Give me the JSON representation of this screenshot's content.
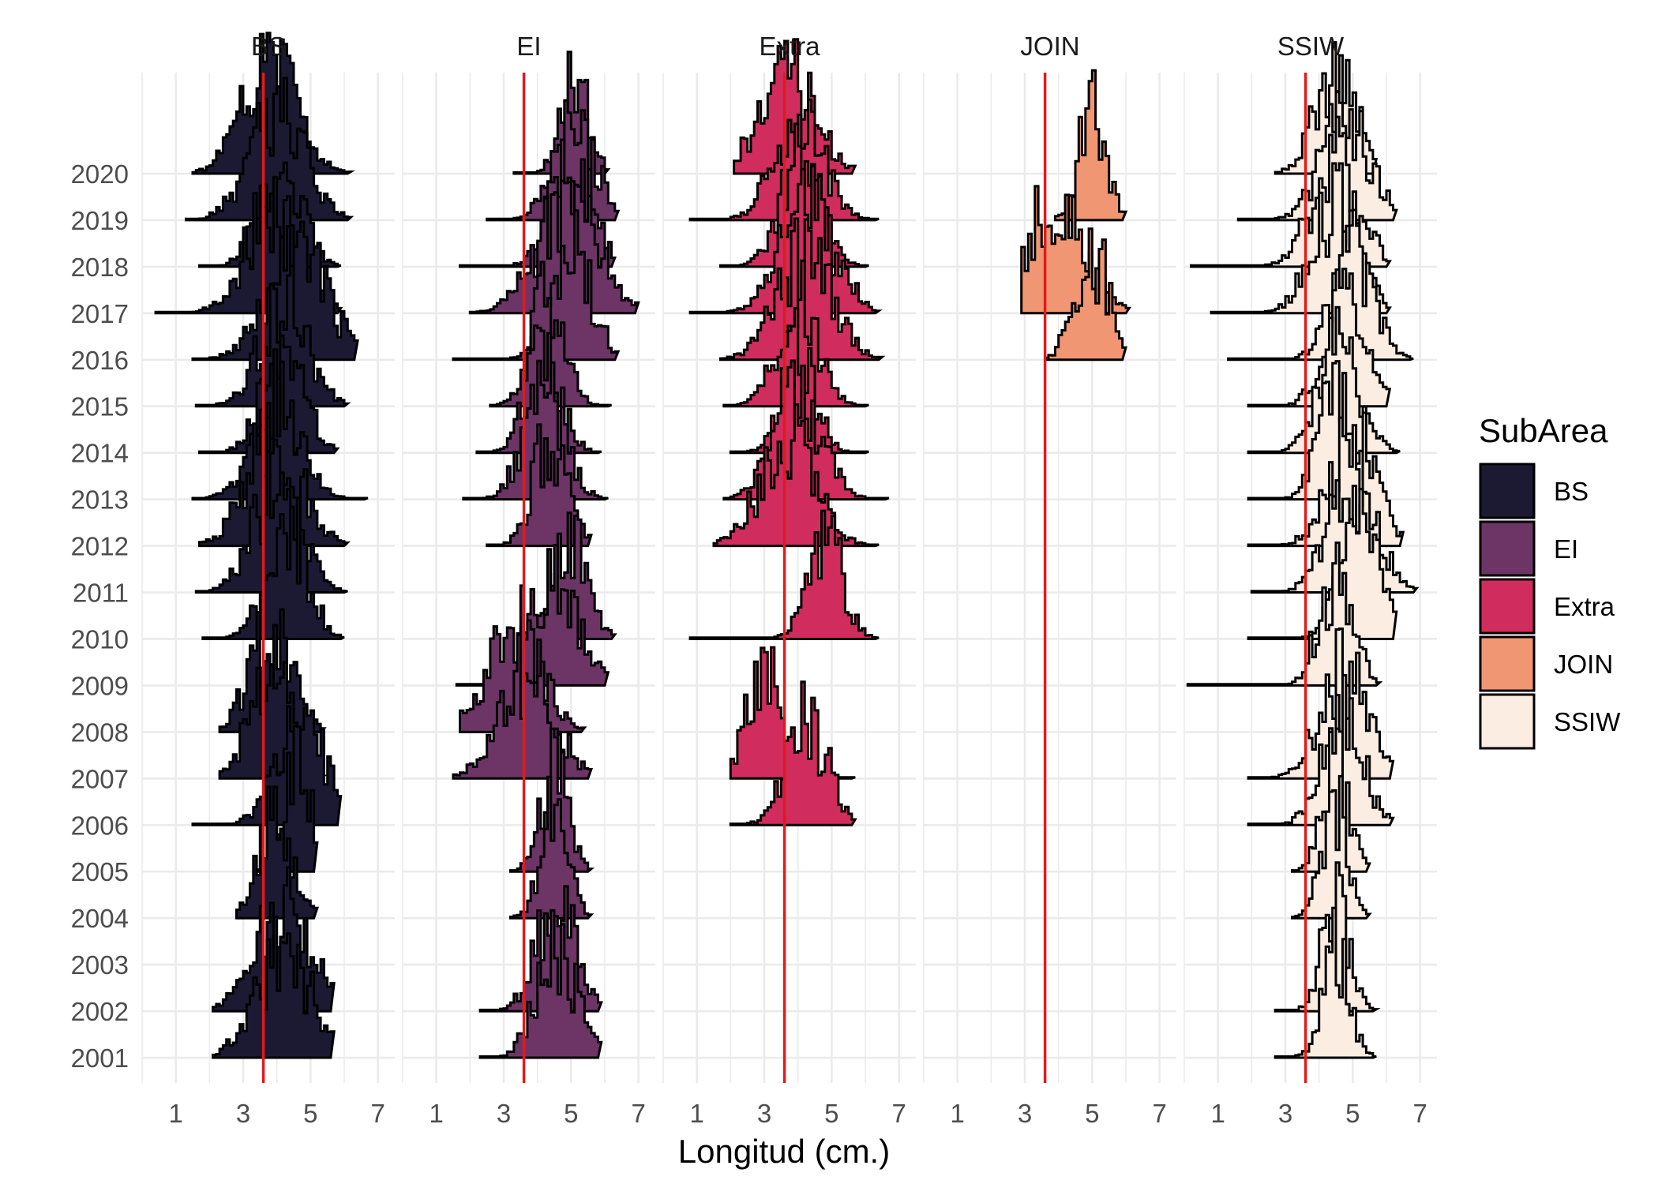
{
  "chart_data": {
    "type": "ridgeline",
    "title": "",
    "xlabel": "Longitud (cm.)",
    "ylabel": "",
    "panels": [
      "BS",
      "EI",
      "Extra",
      "JOIN",
      "SSIW"
    ],
    "years": [
      "2001",
      "2002",
      "2003",
      "2004",
      "2005",
      "2006",
      "2007",
      "2008",
      "2009",
      "2010",
      "2011",
      "2012",
      "2013",
      "2014",
      "2015",
      "2016",
      "2017",
      "2018",
      "2019",
      "2020"
    ],
    "x_ticks": [
      "1",
      "3",
      "5",
      "7"
    ],
    "xlim": [
      0,
      7.5
    ],
    "reference_line_x": 3.6,
    "reference_line_color": "#e31a1c",
    "legend": {
      "title": "SubArea",
      "position": "right",
      "entries": [
        {
          "label": "BS",
          "color": "#1c1a33"
        },
        {
          "label": "EI",
          "color": "#6d3466"
        },
        {
          "label": "Extra",
          "color": "#d02c5e"
        },
        {
          "label": "JOIN",
          "color": "#f19672"
        },
        {
          "label": "SSIW",
          "color": "#fbede2"
        }
      ]
    },
    "grid": true,
    "series": [
      {
        "panel": "BS",
        "year": "2001",
        "range": [
          2.1,
          5.6
        ],
        "mode": 4.2,
        "spread": 0.8
      },
      {
        "panel": "BS",
        "year": "2002",
        "range": [
          2.1,
          5.6
        ],
        "mode": 4.2,
        "spread": 0.8
      },
      {
        "panel": "BS",
        "year": "2004",
        "range": [
          2.8,
          5.1
        ],
        "mode": 4.0,
        "spread": 0.5
      },
      {
        "panel": "BS",
        "year": "2005",
        "range": [
          3.4,
          5.1
        ],
        "mode": 4.6,
        "spread": 0.4
      },
      {
        "panel": "BS",
        "year": "2006",
        "range": [
          1.5,
          5.8
        ],
        "mode": 4.7,
        "spread": 0.7
      },
      {
        "panel": "BS",
        "year": "2007",
        "range": [
          2.3,
          5.3
        ],
        "mode": 3.8,
        "spread": 0.6
      },
      {
        "panel": "BS",
        "year": "2008",
        "range": [
          2.3,
          5.3
        ],
        "mode": 3.8,
        "spread": 0.6
      },
      {
        "panel": "BS",
        "year": "2010",
        "range": [
          1.8,
          5.9
        ],
        "mode": 4.3,
        "spread": 0.6
      },
      {
        "panel": "BS",
        "year": "2011",
        "range": [
          1.6,
          6.0
        ],
        "mode": 4.0,
        "spread": 0.7
      },
      {
        "panel": "BS",
        "year": "2012",
        "range": [
          1.7,
          6.0
        ],
        "mode": 3.9,
        "spread": 0.8
      },
      {
        "panel": "BS",
        "year": "2013",
        "range": [
          1.5,
          6.6
        ],
        "mode": 4.0,
        "spread": 0.7
      },
      {
        "panel": "BS",
        "year": "2014",
        "range": [
          1.7,
          5.7
        ],
        "mode": 4.2,
        "spread": 0.6
      },
      {
        "panel": "BS",
        "year": "2015",
        "range": [
          1.6,
          6.0
        ],
        "mode": 4.2,
        "spread": 0.7
      },
      {
        "panel": "BS",
        "year": "2016",
        "range": [
          1.5,
          6.3
        ],
        "mode": 4.6,
        "spread": 0.9
      },
      {
        "panel": "BS",
        "year": "2017",
        "range": [
          0.4,
          5.8
        ],
        "mode": 3.9,
        "spread": 0.8
      },
      {
        "panel": "BS",
        "year": "2018",
        "range": [
          1.7,
          5.8
        ],
        "mode": 4.1,
        "spread": 0.6
      },
      {
        "panel": "BS",
        "year": "2019",
        "range": [
          1.3,
          6.1
        ],
        "mode": 4.0,
        "spread": 0.8
      },
      {
        "panel": "BS",
        "year": "2020",
        "range": [
          1.5,
          6.1
        ],
        "mode": 3.8,
        "spread": 0.8
      },
      {
        "panel": "EI",
        "year": "2001",
        "range": [
          2.3,
          5.8
        ],
        "mode": 4.6,
        "spread": 0.6
      },
      {
        "panel": "EI",
        "year": "2002",
        "range": [
          2.3,
          5.8
        ],
        "mode": 4.6,
        "spread": 0.6
      },
      {
        "panel": "EI",
        "year": "2004",
        "range": [
          3.2,
          5.5
        ],
        "mode": 4.5,
        "spread": 0.4
      },
      {
        "panel": "EI",
        "year": "2005",
        "range": [
          3.2,
          5.5
        ],
        "mode": 4.5,
        "spread": 0.4
      },
      {
        "panel": "EI",
        "year": "2007",
        "range": [
          1.5,
          5.5
        ],
        "mode": 3.7,
        "spread": 0.8
      },
      {
        "panel": "EI",
        "year": "2008",
        "range": [
          1.7,
          5.3
        ],
        "mode": 3.3,
        "spread": 0.8
      },
      {
        "panel": "EI",
        "year": "2009",
        "range": [
          1.6,
          6.0
        ],
        "mode": 4.5,
        "spread": 0.7
      },
      {
        "panel": "EI",
        "year": "2010",
        "range": [
          3.5,
          6.2
        ],
        "mode": 5.0,
        "spread": 0.5
      },
      {
        "panel": "EI",
        "year": "2012",
        "range": [
          2.5,
          5.5
        ],
        "mode": 4.4,
        "spread": 0.5
      },
      {
        "panel": "EI",
        "year": "2013",
        "range": [
          1.8,
          6.0
        ],
        "mode": 4.2,
        "spread": 0.6
      },
      {
        "panel": "EI",
        "year": "2014",
        "range": [
          2.2,
          5.8
        ],
        "mode": 4.2,
        "spread": 0.5
      },
      {
        "panel": "EI",
        "year": "2015",
        "range": [
          2.6,
          6.1
        ],
        "mode": 4.3,
        "spread": 0.5
      },
      {
        "panel": "EI",
        "year": "2016",
        "range": [
          1.5,
          6.3
        ],
        "mode": 5.0,
        "spread": 0.6
      },
      {
        "panel": "EI",
        "year": "2017",
        "range": [
          2.0,
          6.9
        ],
        "mode": 4.9,
        "spread": 0.9
      },
      {
        "panel": "EI",
        "year": "2018",
        "range": [
          1.7,
          6.2
        ],
        "mode": 5.0,
        "spread": 0.6
      },
      {
        "panel": "EI",
        "year": "2019",
        "range": [
          2.5,
          6.3
        ],
        "mode": 5.1,
        "spread": 0.6
      },
      {
        "panel": "EI",
        "year": "2020",
        "range": [
          3.3,
          6.0
        ],
        "mode": 5.1,
        "spread": 0.4
      },
      {
        "panel": "Extra",
        "year": "2006",
        "range": [
          2.0,
          5.6
        ],
        "mode": 4.3,
        "spread": 0.6
      },
      {
        "panel": "Extra",
        "year": "2007",
        "range": [
          2.0,
          5.6
        ],
        "mode": 3.0,
        "spread": 0.5
      },
      {
        "panel": "Extra",
        "year": "2010",
        "range": [
          0.8,
          6.3
        ],
        "mode": 4.8,
        "spread": 0.5
      },
      {
        "panel": "Extra",
        "year": "2012",
        "range": [
          1.5,
          6.3
        ],
        "mode": 3.7,
        "spread": 0.8
      },
      {
        "panel": "Extra",
        "year": "2013",
        "range": [
          1.8,
          6.6
        ],
        "mode": 4.0,
        "spread": 0.7
      },
      {
        "panel": "Extra",
        "year": "2014",
        "range": [
          2.0,
          6.0
        ],
        "mode": 4.0,
        "spread": 0.5
      },
      {
        "panel": "Extra",
        "year": "2015",
        "range": [
          1.8,
          6.0
        ],
        "mode": 4.0,
        "spread": 0.6
      },
      {
        "panel": "Extra",
        "year": "2016",
        "range": [
          1.7,
          6.4
        ],
        "mode": 4.2,
        "spread": 0.8
      },
      {
        "panel": "Extra",
        "year": "2017",
        "range": [
          0.8,
          6.3
        ],
        "mode": 4.3,
        "spread": 0.8
      },
      {
        "panel": "Extra",
        "year": "2018",
        "range": [
          1.7,
          6.0
        ],
        "mode": 4.1,
        "spread": 0.6
      },
      {
        "panel": "Extra",
        "year": "2019",
        "range": [
          0.8,
          6.3
        ],
        "mode": 4.0,
        "spread": 0.7
      },
      {
        "panel": "Extra",
        "year": "2020",
        "range": [
          2.1,
          5.6
        ],
        "mode": 3.7,
        "spread": 0.8
      },
      {
        "panel": "JOIN",
        "year": "2016",
        "range": [
          3.6,
          5.9
        ],
        "mode": 5.0,
        "spread": 0.5
      },
      {
        "panel": "JOIN",
        "year": "2017",
        "range": [
          2.9,
          6.0
        ],
        "mode": 3.8,
        "spread": 0.9
      },
      {
        "panel": "JOIN",
        "year": "2019",
        "range": [
          3.9,
          5.9
        ],
        "mode": 5.0,
        "spread": 0.4
      },
      {
        "panel": "SSIW",
        "year": "2001",
        "range": [
          2.7,
          5.6
        ],
        "mode": 4.5,
        "spread": 0.4
      },
      {
        "panel": "SSIW",
        "year": "2002",
        "range": [
          2.7,
          5.6
        ],
        "mode": 4.5,
        "spread": 0.4
      },
      {
        "panel": "SSIW",
        "year": "2004",
        "range": [
          3.2,
          5.4
        ],
        "mode": 4.5,
        "spread": 0.4
      },
      {
        "panel": "SSIW",
        "year": "2005",
        "range": [
          3.2,
          5.4
        ],
        "mode": 4.5,
        "spread": 0.4
      },
      {
        "panel": "SSIW",
        "year": "2006",
        "range": [
          1.9,
          6.1
        ],
        "mode": 4.7,
        "spread": 0.6
      },
      {
        "panel": "SSIW",
        "year": "2007",
        "range": [
          1.9,
          6.1
        ],
        "mode": 4.7,
        "spread": 0.7
      },
      {
        "panel": "SSIW",
        "year": "2009",
        "range": [
          0.1,
          5.7
        ],
        "mode": 4.5,
        "spread": 0.5
      },
      {
        "panel": "SSIW",
        "year": "2010",
        "range": [
          1.9,
          6.2
        ],
        "mode": 5.2,
        "spread": 0.6
      },
      {
        "panel": "SSIW",
        "year": "2011",
        "range": [
          2.0,
          6.8
        ],
        "mode": 5.0,
        "spread": 0.7
      },
      {
        "panel": "SSIW",
        "year": "2012",
        "range": [
          1.9,
          6.4
        ],
        "mode": 5.0,
        "spread": 0.7
      },
      {
        "panel": "SSIW",
        "year": "2013",
        "range": [
          1.9,
          5.9
        ],
        "mode": 4.5,
        "spread": 0.5
      },
      {
        "panel": "SSIW",
        "year": "2014",
        "range": [
          1.9,
          6.3
        ],
        "mode": 4.6,
        "spread": 0.6
      },
      {
        "panel": "SSIW",
        "year": "2015",
        "range": [
          1.9,
          6.0
        ],
        "mode": 4.8,
        "spread": 0.6
      },
      {
        "panel": "SSIW",
        "year": "2016",
        "range": [
          1.3,
          6.7
        ],
        "mode": 5.0,
        "spread": 0.6
      },
      {
        "panel": "SSIW",
        "year": "2017",
        "range": [
          0.8,
          6.0
        ],
        "mode": 4.5,
        "spread": 0.7
      },
      {
        "panel": "SSIW",
        "year": "2018",
        "range": [
          0.2,
          6.0
        ],
        "mode": 4.5,
        "spread": 0.7
      },
      {
        "panel": "SSIW",
        "year": "2019",
        "range": [
          1.6,
          6.2
        ],
        "mode": 4.8,
        "spread": 0.7
      },
      {
        "panel": "SSIW",
        "year": "2020",
        "range": [
          2.7,
          5.6
        ],
        "mode": 4.5,
        "spread": 0.6
      }
    ]
  }
}
